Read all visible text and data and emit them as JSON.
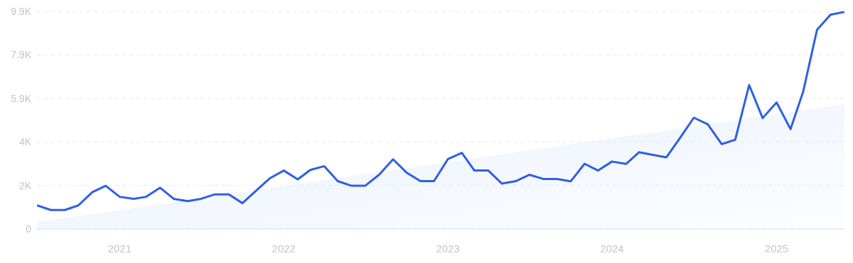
{
  "chart_data": {
    "type": "line",
    "x": [
      "2020-07",
      "2020-08",
      "2020-09",
      "2020-10",
      "2020-11",
      "2020-12",
      "2021-01",
      "2021-02",
      "2021-03",
      "2021-04",
      "2021-05",
      "2021-06",
      "2021-07",
      "2021-08",
      "2021-09",
      "2021-10",
      "2021-11",
      "2021-12",
      "2022-01",
      "2022-02",
      "2022-03",
      "2022-04",
      "2022-05",
      "2022-06",
      "2022-07",
      "2022-08",
      "2022-09",
      "2022-10",
      "2022-11",
      "2022-12",
      "2023-01",
      "2023-02",
      "2023-03",
      "2023-04",
      "2023-05",
      "2023-06",
      "2023-07",
      "2023-08",
      "2023-09",
      "2023-10",
      "2023-11",
      "2023-12",
      "2024-01",
      "2024-02",
      "2024-03",
      "2024-04",
      "2024-05",
      "2024-06",
      "2024-07",
      "2024-08",
      "2024-09",
      "2024-10",
      "2024-11",
      "2024-12",
      "2025-01",
      "2025-02",
      "2025-03",
      "2025-04",
      "2025-05",
      "2025-06"
    ],
    "series": [
      {
        "type": "area",
        "color": "#dbe8fa",
        "x": [
          "2020-07",
          "2025-06"
        ],
        "values": [
          310,
          5660
        ]
      },
      {
        "color": "#2f5fe3",
        "values": [
          1070,
          860,
          860,
          1070,
          1670,
          1960,
          1460,
          1370,
          1460,
          1870,
          1370,
          1260,
          1370,
          1570,
          1570,
          1170,
          1750,
          2300,
          2650,
          2250,
          2680,
          2850,
          2170,
          1960,
          1960,
          2460,
          3160,
          2560,
          2170,
          2170,
          3170,
          3450,
          2650,
          2650,
          2060,
          2170,
          2460,
          2270,
          2270,
          2160,
          2960,
          2650,
          3060,
          2950,
          3480,
          3360,
          3250,
          4150,
          5050,
          4750,
          3850,
          4050,
          6530,
          5030,
          5740,
          4530,
          6220,
          9040,
          9720,
          9850
        ]
      }
    ],
    "xlim": [
      "2020-07",
      "2025-06"
    ],
    "xticks": [
      "2021",
      "2022",
      "2023",
      "2024",
      "2025"
    ],
    "ylim": [
      0,
      9875
    ],
    "yticks": [
      0,
      {
        "value": 1975,
        "label": "2K"
      },
      {
        "value": 3950,
        "label": "4K"
      },
      {
        "value": 5925,
        "label": "5.9K"
      },
      {
        "value": 7900,
        "label": "7.9K"
      },
      {
        "value": 9875,
        "label": "9.9K"
      }
    ],
    "grid": "y",
    "legend": false,
    "marker": "none",
    "line_style": "solid"
  }
}
